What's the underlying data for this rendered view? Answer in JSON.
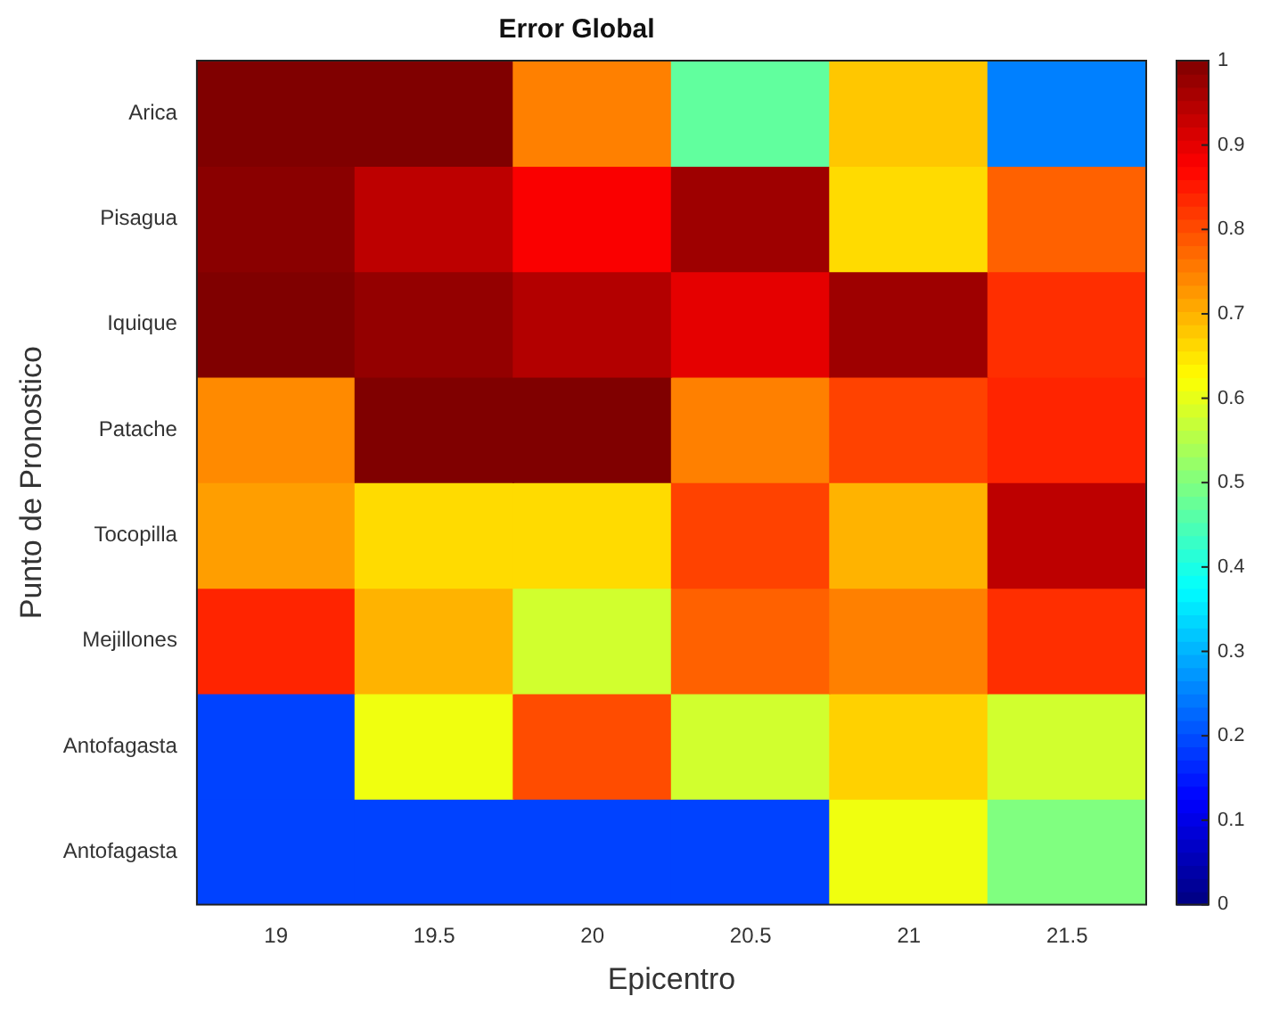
{
  "chart_data": {
    "type": "heatmap",
    "title": "Error Global",
    "xlabel": "Epicentro",
    "ylabel": "Punto de Pronostico",
    "categories": [
      "19",
      "19.5",
      "20",
      "20.5",
      "21",
      "21.5"
    ],
    "y_categories": [
      "Arica",
      "Pisagua",
      "Iquique",
      "Patache",
      "Tocopilla",
      "Mejillones",
      "Antofagasta",
      "Antofagasta"
    ],
    "cells": [
      [
        1.0,
        1.0,
        0.75,
        0.47,
        0.68,
        0.25
      ],
      [
        0.99,
        0.94,
        0.88,
        0.97,
        0.66,
        0.78
      ],
      [
        1.0,
        0.98,
        0.95,
        0.9,
        0.97,
        0.83
      ],
      [
        0.74,
        1.0,
        1.0,
        0.75,
        0.81,
        0.84
      ],
      [
        0.72,
        0.66,
        0.66,
        0.81,
        0.7,
        0.94
      ],
      [
        0.84,
        0.7,
        0.58,
        0.78,
        0.75,
        0.83
      ],
      [
        0.19,
        0.61,
        0.8,
        0.58,
        0.67,
        0.58
      ],
      [
        0.19,
        0.19,
        0.19,
        0.19,
        0.61,
        0.5
      ]
    ],
    "clim": [
      0,
      1
    ],
    "cticks": [
      0,
      0.1,
      0.2,
      0.3,
      0.4,
      0.5,
      0.6,
      0.7,
      0.8,
      0.9,
      1
    ]
  }
}
